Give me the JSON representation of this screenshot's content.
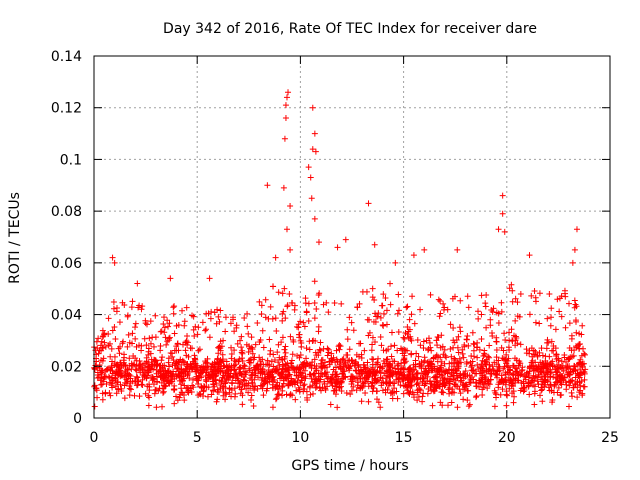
{
  "chart_data": {
    "type": "scatter",
    "title": "Day 342 of 2016, Rate Of TEC Index for receiver dare",
    "xlabel": "GPS time / hours",
    "ylabel": "ROTI / TECUs",
    "xlim": [
      0,
      25
    ],
    "ylim": [
      0,
      0.14
    ],
    "xticks": [
      0,
      5,
      10,
      15,
      20,
      25
    ],
    "xtick_labels": [
      "0",
      "5",
      "10",
      "15",
      "20",
      "25"
    ],
    "yticks": [
      0,
      0.02,
      0.04,
      0.06,
      0.08,
      0.1,
      0.12,
      0.14
    ],
    "ytick_labels": [
      "0",
      "0.02",
      "0.04",
      "0.06",
      "0.08",
      "0.1",
      "0.12",
      "0.14"
    ],
    "grid": true,
    "marker": "+",
    "color": "#ff0000",
    "series": [
      {
        "name": "ROTI",
        "density_profile": {
          "x_range": [
            0,
            23.8
          ],
          "typical_band": [
            0.008,
            0.026
          ],
          "envelope": [
            {
              "x": 0.0,
              "y": 0.03
            },
            {
              "x": 0.5,
              "y": 0.035
            },
            {
              "x": 1.0,
              "y": 0.052
            },
            {
              "x": 2.0,
              "y": 0.045
            },
            {
              "x": 3.0,
              "y": 0.04
            },
            {
              "x": 4.0,
              "y": 0.048
            },
            {
              "x": 5.0,
              "y": 0.038
            },
            {
              "x": 6.0,
              "y": 0.045
            },
            {
              "x": 7.0,
              "y": 0.04
            },
            {
              "x": 8.0,
              "y": 0.045
            },
            {
              "x": 9.0,
              "y": 0.055
            },
            {
              "x": 10.0,
              "y": 0.05
            },
            {
              "x": 11.0,
              "y": 0.055
            },
            {
              "x": 12.0,
              "y": 0.045
            },
            {
              "x": 13.0,
              "y": 0.05
            },
            {
              "x": 14.0,
              "y": 0.055
            },
            {
              "x": 15.0,
              "y": 0.05
            },
            {
              "x": 16.0,
              "y": 0.05
            },
            {
              "x": 17.0,
              "y": 0.045
            },
            {
              "x": 18.0,
              "y": 0.05
            },
            {
              "x": 19.0,
              "y": 0.048
            },
            {
              "x": 20.0,
              "y": 0.052
            },
            {
              "x": 21.0,
              "y": 0.05
            },
            {
              "x": 22.0,
              "y": 0.048
            },
            {
              "x": 23.0,
              "y": 0.05
            },
            {
              "x": 23.8,
              "y": 0.04
            }
          ]
        },
        "notable_points": [
          {
            "x": 0.9,
            "y": 0.062
          },
          {
            "x": 1.0,
            "y": 0.06
          },
          {
            "x": 2.1,
            "y": 0.052
          },
          {
            "x": 3.7,
            "y": 0.054
          },
          {
            "x": 5.6,
            "y": 0.054
          },
          {
            "x": 8.4,
            "y": 0.09
          },
          {
            "x": 8.8,
            "y": 0.062
          },
          {
            "x": 9.2,
            "y": 0.089
          },
          {
            "x": 9.25,
            "y": 0.108
          },
          {
            "x": 9.3,
            "y": 0.116
          },
          {
            "x": 9.3,
            "y": 0.121
          },
          {
            "x": 9.35,
            "y": 0.124
          },
          {
            "x": 9.4,
            "y": 0.126
          },
          {
            "x": 9.35,
            "y": 0.073
          },
          {
            "x": 9.5,
            "y": 0.082
          },
          {
            "x": 9.5,
            "y": 0.065
          },
          {
            "x": 10.4,
            "y": 0.097
          },
          {
            "x": 10.5,
            "y": 0.093
          },
          {
            "x": 10.6,
            "y": 0.12
          },
          {
            "x": 10.6,
            "y": 0.104
          },
          {
            "x": 10.7,
            "y": 0.11
          },
          {
            "x": 10.75,
            "y": 0.103
          },
          {
            "x": 10.55,
            "y": 0.085
          },
          {
            "x": 10.7,
            "y": 0.077
          },
          {
            "x": 10.9,
            "y": 0.068
          },
          {
            "x": 11.8,
            "y": 0.066
          },
          {
            "x": 12.2,
            "y": 0.069
          },
          {
            "x": 13.3,
            "y": 0.083
          },
          {
            "x": 13.6,
            "y": 0.067
          },
          {
            "x": 14.6,
            "y": 0.06
          },
          {
            "x": 15.5,
            "y": 0.063
          },
          {
            "x": 16.0,
            "y": 0.065
          },
          {
            "x": 17.6,
            "y": 0.065
          },
          {
            "x": 19.6,
            "y": 0.073
          },
          {
            "x": 19.8,
            "y": 0.086
          },
          {
            "x": 19.8,
            "y": 0.079
          },
          {
            "x": 19.9,
            "y": 0.072
          },
          {
            "x": 21.1,
            "y": 0.063
          },
          {
            "x": 23.2,
            "y": 0.06
          },
          {
            "x": 23.3,
            "y": 0.065
          },
          {
            "x": 23.4,
            "y": 0.073
          }
        ]
      }
    ]
  }
}
